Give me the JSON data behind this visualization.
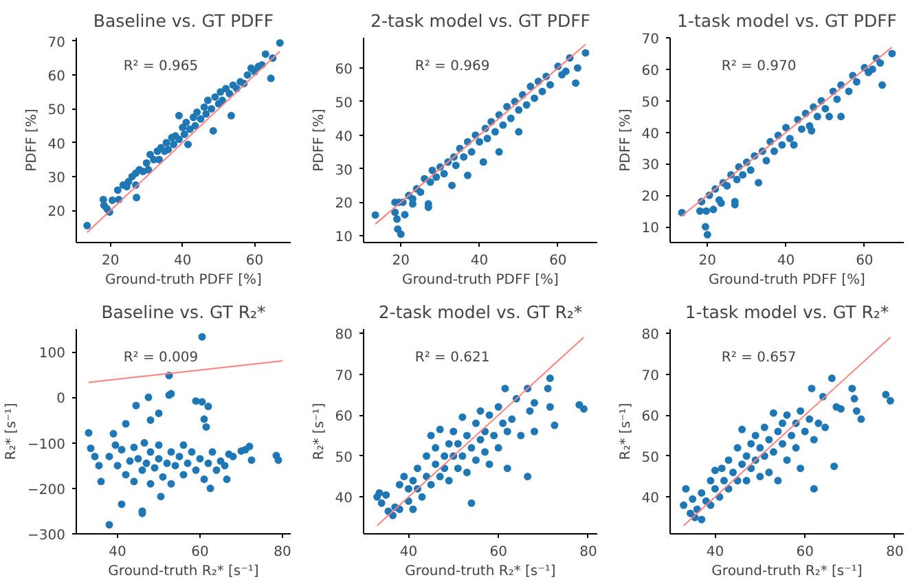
{
  "chart_data": [
    {
      "type": "scatter",
      "title": "Baseline vs. GT PDFF",
      "xlabel": "Ground-truth PDFF [%]",
      "ylabel": "PDFF [%]",
      "annotations": [
        "R² = 0.965"
      ],
      "xlim": [
        10.5,
        70
      ],
      "ylim": [
        10.5,
        71
      ],
      "xticks": [
        20,
        40,
        60
      ],
      "yticks": [
        20,
        30,
        40,
        50,
        60,
        70
      ],
      "grid": false,
      "series": [
        {
          "marker": "circle",
          "color": "#1f77b4",
          "x": [
            13.5,
            18,
            18.2,
            19,
            19.7,
            20.5,
            22.3,
            22,
            23.5,
            24.5,
            25,
            26,
            27,
            27,
            27.2,
            28,
            29,
            30,
            30.5,
            31,
            32,
            33,
            33.5,
            34,
            35,
            35.5,
            36,
            37,
            37.5,
            38,
            39,
            39,
            40,
            40.5,
            41,
            41.5,
            42,
            43,
            43.5,
            44,
            45,
            46,
            46.5,
            47,
            48,
            48.5,
            49,
            50,
            50.5,
            51,
            52,
            53,
            53.5,
            54,
            55,
            56,
            57,
            58,
            59,
            60,
            61,
            62,
            63,
            64.5,
            65,
            67
          ],
          "values": [
            15.5,
            23.2,
            21.5,
            20.5,
            19.5,
            23,
            23.2,
            26,
            27.5,
            27,
            28.5,
            30,
            31,
            27.5,
            23.8,
            32,
            31.5,
            34,
            32,
            36.5,
            35,
            37.5,
            35,
            38.5,
            37.5,
            40,
            38,
            41.5,
            39.5,
            42,
            48,
            41,
            44.5,
            42.5,
            46,
            39.5,
            44,
            47.5,
            45,
            49,
            47,
            50.5,
            48.5,
            52.5,
            50,
            43.5,
            53.5,
            51.5,
            55,
            52.5,
            56,
            54.5,
            48,
            57,
            56,
            58,
            57.5,
            60,
            62,
            61,
            62.5,
            63,
            66.2,
            59,
            65,
            69.5
          ]
        },
        {
          "type": "line",
          "color": "#ff8080",
          "x": [
            13.5,
            67
          ],
          "values": [
            13.5,
            67
          ]
        }
      ]
    },
    {
      "type": "scatter",
      "title": "2-task model vs. GT PDFF",
      "xlabel": "Ground-truth PDFF [%]",
      "ylabel": "PDFF [%]",
      "annotations": [
        "R² = 0.969"
      ],
      "xlim": [
        10.5,
        70
      ],
      "ylim": [
        8,
        69
      ],
      "xticks": [
        20,
        40,
        60
      ],
      "yticks": [
        10,
        20,
        30,
        40,
        50,
        60
      ],
      "grid": false,
      "series": [
        {
          "marker": "circle",
          "color": "#1f77b4",
          "x": [
            13.5,
            18.5,
            19,
            19.2,
            20,
            18.5,
            19.5,
            20.5,
            21,
            22,
            23,
            23,
            24,
            25,
            26,
            27,
            27,
            27.5,
            28,
            29,
            30,
            31,
            32,
            33,
            33.5,
            34,
            35,
            36,
            37,
            37,
            38,
            39,
            40,
            41,
            41.5,
            42,
            43,
            44,
            45,
            45,
            46,
            47,
            48,
            49,
            50,
            50,
            51,
            52,
            53,
            54,
            55,
            56,
            57,
            58,
            60,
            61,
            62,
            63,
            64.5,
            65,
            67
          ],
          "values": [
            16.2,
            17,
            15,
            12,
            10.5,
            20,
            20,
            20,
            16.3,
            22,
            19.5,
            21,
            24,
            23,
            27,
            18.5,
            19.5,
            26,
            29.5,
            27.5,
            30.5,
            28.5,
            32,
            25,
            33.5,
            31,
            36,
            33.5,
            28,
            38,
            35,
            40,
            38,
            32,
            42,
            39,
            44,
            41,
            35,
            46,
            43,
            48.5,
            45,
            50,
            47.5,
            41,
            52,
            49,
            54.5,
            51,
            56,
            53,
            57.5,
            55,
            60.5,
            58,
            59,
            63,
            55.5,
            60,
            64.5
          ]
        },
        {
          "type": "line",
          "color": "#ff8080",
          "x": [
            13.5,
            67
          ],
          "values": [
            13.5,
            67
          ]
        }
      ]
    },
    {
      "type": "scatter",
      "title": "1-task model vs. GT PDFF",
      "xlabel": "Ground-truth PDFF [%]",
      "ylabel": "PDFF [%]",
      "annotations": [
        "R² = 0.970"
      ],
      "xlim": [
        10.5,
        70
      ],
      "ylim": [
        5,
        70
      ],
      "xticks": [
        20,
        40,
        60
      ],
      "yticks": [
        10,
        20,
        30,
        40,
        50,
        60,
        70
      ],
      "grid": false,
      "series": [
        {
          "marker": "circle",
          "color": "#1f77b4",
          "x": [
            13.5,
            18.5,
            18.1,
            19.7,
            19.5,
            20,
            20.5,
            21.5,
            22,
            23,
            23.5,
            24,
            25,
            26,
            27,
            27,
            27.5,
            28,
            29,
            30,
            31,
            32,
            33,
            34,
            35,
            36,
            37,
            38,
            39,
            40,
            41,
            42,
            43,
            44,
            45,
            46,
            46.5,
            47,
            48,
            49,
            50,
            51,
            52,
            53,
            54,
            54,
            56,
            57,
            58,
            60,
            61,
            62,
            63,
            64,
            64.5,
            67
          ],
          "values": [
            14.5,
            18,
            15,
            15,
            10,
            7.5,
            20,
            15.5,
            22,
            18.5,
            17.5,
            24,
            23,
            26.5,
            18,
            17,
            25,
            29,
            26.5,
            30.5,
            28,
            32.5,
            24,
            34,
            31,
            37,
            34,
            39,
            36,
            41.5,
            38,
            36,
            44,
            41,
            46,
            42,
            40.5,
            48,
            45,
            50,
            47.5,
            45,
            53,
            50.5,
            45,
            55,
            53,
            58,
            56,
            60.5,
            59,
            60,
            63.5,
            62,
            55,
            65
          ]
        },
        {
          "type": "line",
          "color": "#ff8080",
          "x": [
            13.5,
            67
          ],
          "values": [
            13.5,
            67
          ]
        }
      ]
    },
    {
      "type": "scatter",
      "title": "Baseline vs. GT R₂*",
      "xlabel": "Ground-truth R₂* [s⁻¹]",
      "ylabel": "R₂* [s⁻¹]",
      "annotations": [
        "R² = 0.009"
      ],
      "xlim": [
        30,
        82
      ],
      "ylim": [
        -300,
        150
      ],
      "xticks": [
        40,
        60,
        80
      ],
      "yticks": [
        {
          "value": -300,
          "label": "−300"
        },
        {
          "value": -200,
          "label": "−200"
        },
        {
          "value": -100,
          "label": "−100"
        },
        0,
        100
      ],
      "grid": false,
      "series": [
        {
          "marker": "circle",
          "color": "#1f77b4",
          "x": [
            33,
            33.5,
            34.5,
            35.5,
            36,
            38,
            39,
            39.5,
            41,
            42,
            44.5,
            46,
            46,
            47.5,
            48,
            50,
            50.5,
            52.5,
            52.5,
            53,
            59,
            60.5,
            60.5,
            61,
            61.5,
            62,
            62.5,
            66.5,
            67,
            71,
            72,
            72.5,
            78.5,
            79,
            38,
            40,
            41,
            42,
            43,
            44,
            44,
            45,
            46,
            46.5,
            47,
            48,
            48,
            49,
            50,
            50,
            51,
            52,
            53,
            53,
            54,
            55,
            56,
            56,
            57,
            58,
            59,
            60,
            61,
            62,
            63,
            64,
            65,
            66,
            68,
            70
          ],
          "values": [
            -78,
            -112,
            -130,
            -150,
            -185,
            -280,
            -80,
            -105,
            -235,
            -58,
            -18,
            -250,
            -255,
            0,
            -50,
            -35,
            -218,
            48,
            5,
            8,
            -8,
            133,
            -10,
            -48,
            -65,
            -20,
            -200,
            -180,
            -125,
            -115,
            -108,
            -138,
            -128,
            -138,
            -130,
            -150,
            -115,
            -170,
            -140,
            -110,
            -185,
            -135,
            -160,
            -100,
            -145,
            -120,
            -190,
            -155,
            -135,
            -105,
            -175,
            -145,
            -120,
            -190,
            -150,
            -130,
            -170,
            -105,
            -145,
            -120,
            -160,
            -135,
            -180,
            -145,
            -120,
            -160,
            -140,
            -150,
            -130,
            -118
          ]
        },
        {
          "type": "line",
          "color": "#ff8080",
          "x": [
            33,
            80
          ],
          "values": [
            33,
            80
          ]
        }
      ]
    },
    {
      "type": "scatter",
      "title": "2-task model vs. GT R₂*",
      "xlabel": "Ground-truth R₂* [s⁻¹]",
      "ylabel": "R₂* [s⁻¹]",
      "annotations": [
        "R² = 0.621"
      ],
      "xlim": [
        30,
        82
      ],
      "ylim": [
        31,
        81
      ],
      "xticks": [
        40,
        60,
        80
      ],
      "yticks": [
        40,
        50,
        60,
        70,
        80
      ],
      "grid": false,
      "series": [
        {
          "marker": "circle",
          "color": "#1f77b4",
          "x": [
            33,
            33.5,
            34,
            35,
            35.5,
            36.5,
            37,
            38,
            38,
            39,
            40,
            40,
            41,
            41,
            42,
            42,
            43,
            44,
            44,
            45,
            45,
            46,
            46,
            47,
            47,
            48,
            48,
            49,
            49,
            50,
            50,
            51,
            51,
            52,
            52,
            53,
            53,
            54,
            54,
            55,
            55,
            56,
            56,
            57,
            57,
            58,
            58,
            59,
            60,
            60,
            61,
            61.5,
            62,
            62,
            63,
            64,
            65,
            66.5,
            66.5,
            67,
            68,
            68,
            71,
            71.5,
            71.5,
            72.5,
            78,
            79
          ],
          "values": [
            40,
            41,
            38.5,
            40.5,
            36.5,
            35.5,
            37.5,
            43,
            37,
            45,
            42,
            39,
            44,
            37,
            47,
            42,
            40,
            45,
            50,
            43,
            55,
            48,
            52,
            45,
            56.5,
            50,
            47,
            53,
            44,
            50,
            56,
            47,
            53,
            59.5,
            50,
            46,
            55,
            38.5,
            52,
            58,
            49,
            54,
            61,
            51,
            56,
            60,
            48,
            55,
            52,
            62,
            58,
            66.5,
            56,
            47,
            59,
            64,
            55,
            45,
            66.5,
            61,
            63,
            56,
            66.5,
            69,
            62,
            57.5,
            62.5,
            61.5
          ]
        },
        {
          "type": "line",
          "color": "#ff8080",
          "x": [
            33,
            79
          ],
          "values": [
            33,
            79
          ]
        }
      ]
    },
    {
      "type": "scatter",
      "title": "1-task model vs. GT R₂*",
      "xlabel": "Ground-truth R₂* [s⁻¹]",
      "ylabel": "R₂* [s⁻¹]",
      "annotations": [
        "R² = 0.657"
      ],
      "xlim": [
        30,
        82
      ],
      "ylim": [
        31,
        81
      ],
      "xticks": [
        40,
        60,
        80
      ],
      "yticks": [
        40,
        50,
        60,
        70,
        80
      ],
      "grid": false,
      "series": [
        {
          "marker": "circle",
          "color": "#1f77b4",
          "x": [
            33,
            33.5,
            34.5,
            35,
            35.5,
            36,
            37,
            37,
            38,
            39,
            39,
            40,
            40,
            41,
            41.5,
            42,
            43,
            43,
            44,
            45,
            45,
            46,
            46,
            47,
            47,
            48,
            48,
            49,
            49,
            50,
            50,
            51,
            51,
            52,
            52,
            53,
            53,
            54,
            54,
            55,
            55,
            56,
            56,
            57,
            58,
            58,
            59,
            59,
            60,
            61,
            61.5,
            62,
            62,
            63,
            64,
            64.5,
            66,
            66.5,
            67,
            68,
            70.5,
            71,
            71.5,
            72.5,
            78,
            79
          ],
          "values": [
            38,
            42,
            36,
            39.5,
            35,
            37,
            34.5,
            41,
            39,
            44,
            38,
            42,
            46.5,
            40,
            47,
            44,
            42,
            49,
            46,
            44,
            52,
            48,
            56.5,
            50,
            44,
            53,
            47,
            49,
            55,
            52,
            45,
            57,
            50,
            54,
            46,
            51,
            60.5,
            56,
            44,
            53,
            58,
            49,
            60,
            55,
            58,
            52,
            61,
            47,
            56,
            59,
            66.5,
            54,
            42,
            58,
            64.5,
            57,
            69,
            47.5,
            62,
            61.5,
            66.5,
            64,
            61,
            59,
            65,
            63.5
          ]
        },
        {
          "type": "line",
          "color": "#ff8080",
          "x": [
            33,
            79
          ],
          "values": [
            33,
            79
          ]
        }
      ]
    }
  ]
}
